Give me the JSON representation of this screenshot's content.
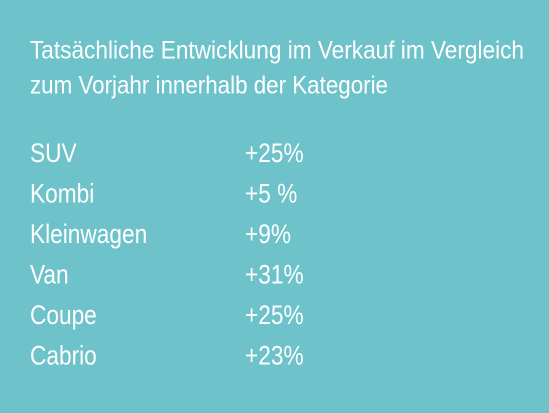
{
  "header": {
    "title_lines": [
      "Tatsächliche Entwicklung im Verkauf im Vergleich",
      "zum Vorjahr innerhalb der Kategorie"
    ]
  },
  "table": {
    "rows": [
      [
        "SUV",
        "+25%"
      ],
      [
        "Kombi",
        "+5 %"
      ],
      [
        "Kleinwagen",
        "+9%"
      ],
      [
        "Van",
        "+31%"
      ],
      [
        "Coupe",
        "+25%"
      ],
      [
        "Cabrio",
        "+23%"
      ]
    ]
  }
}
